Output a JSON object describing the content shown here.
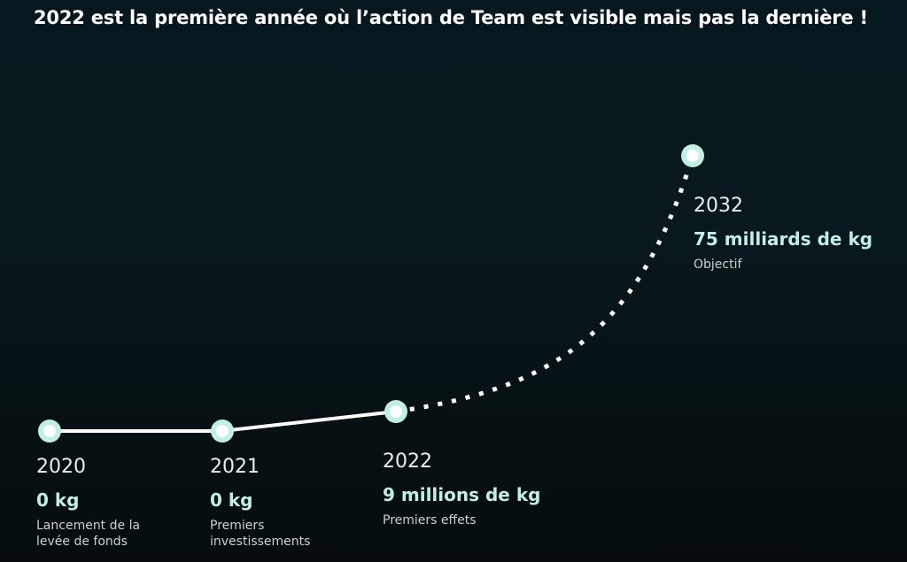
{
  "title": "2022 est la première année où l’action de Team est visible mais pas la dernière !",
  "colors": {
    "accent": "#bff0e6",
    "line": "#ffffff",
    "background": "#08181c"
  },
  "milestones": [
    {
      "year": "2020",
      "amount": "0 kg",
      "caption_lines": [
        "Lancement de la",
        "levée de fonds"
      ]
    },
    {
      "year": "2021",
      "amount": "0 kg",
      "caption_lines": [
        "Premiers",
        "investissements"
      ]
    },
    {
      "year": "2022",
      "amount": "9 millions de kg",
      "caption_lines": [
        "Premiers effets"
      ]
    },
    {
      "year": "2032",
      "amount": "75 milliards de kg",
      "caption_lines": [
        "Objectif"
      ]
    }
  ]
}
